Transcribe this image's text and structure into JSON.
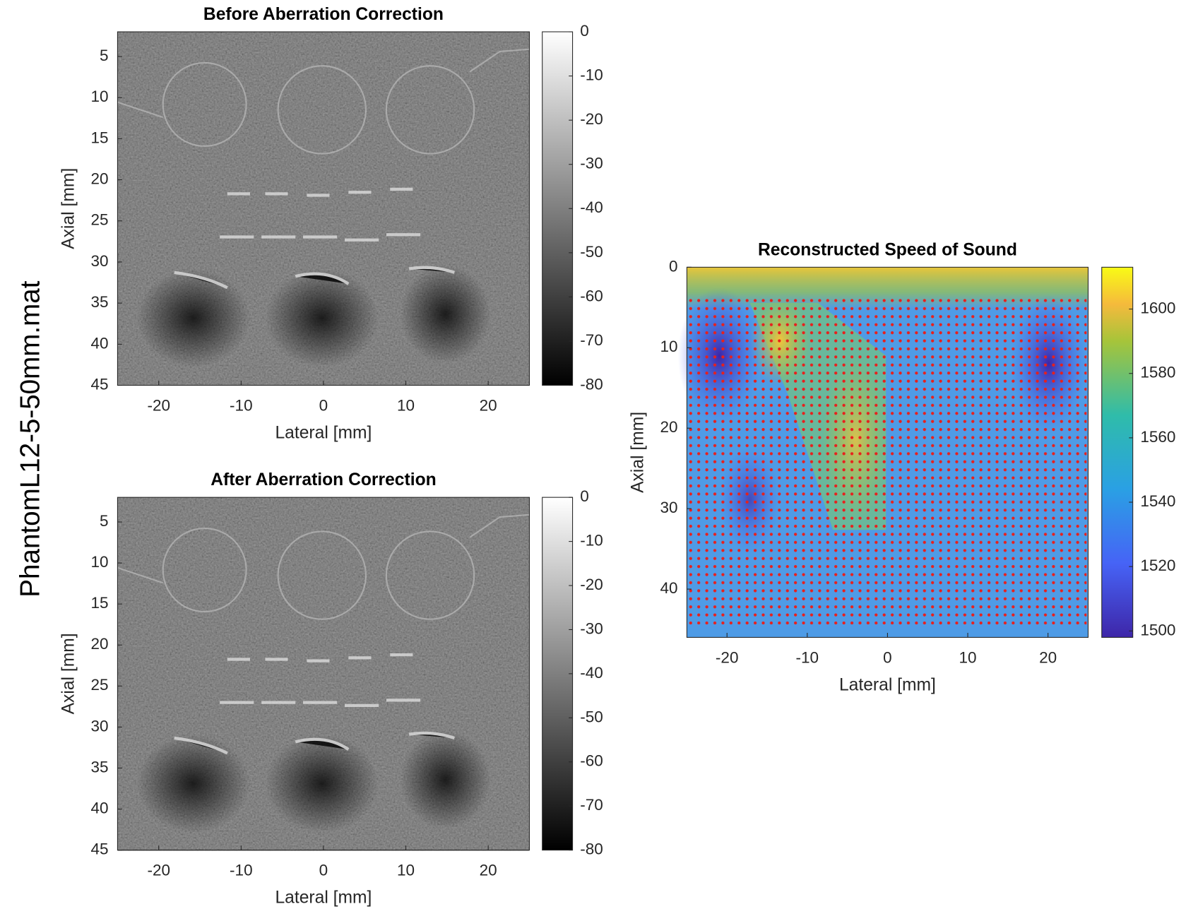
{
  "figure_title": "PhantomL12-5-50mm.mat",
  "chart_data": [
    {
      "type": "image",
      "title": "Before Aberration Correction",
      "xlabel": "Lateral [mm]",
      "ylabel": "Axial [mm]",
      "xlim": [
        -25,
        25
      ],
      "ylim": [
        2,
        45
      ],
      "y_direction": "reverse",
      "xticks": [
        -20,
        -10,
        0,
        10,
        20
      ],
      "yticks": [
        5,
        10,
        15,
        20,
        25,
        30,
        35,
        40,
        45
      ],
      "colormap": "gray",
      "clim": [
        -80,
        0
      ],
      "cticks": [
        0,
        -10,
        -20,
        -30,
        -40,
        -50,
        -60,
        -70,
        -80
      ]
    },
    {
      "type": "image",
      "title": "After Aberration Correction",
      "xlabel": "Lateral [mm]",
      "ylabel": "Axial [mm]",
      "xlim": [
        -25,
        25
      ],
      "ylim": [
        2,
        45
      ],
      "y_direction": "reverse",
      "xticks": [
        -20,
        -10,
        0,
        10,
        20
      ],
      "yticks": [
        5,
        10,
        15,
        20,
        25,
        30,
        35,
        40,
        45
      ],
      "colormap": "gray",
      "clim": [
        -80,
        0
      ],
      "cticks": [
        0,
        -10,
        -20,
        -30,
        -40,
        -50,
        -60,
        -70,
        -80
      ]
    },
    {
      "type": "image",
      "title": "Reconstructed Speed of Sound",
      "xlabel": "Lateral [mm]",
      "ylabel": "Axial [mm]",
      "xlim": [
        -25,
        25
      ],
      "ylim": [
        0,
        46
      ],
      "y_direction": "reverse",
      "xticks": [
        -20,
        -10,
        0,
        10,
        20
      ],
      "yticks": [
        0,
        10,
        20,
        30,
        40
      ],
      "colormap": "parula",
      "clim": [
        1498,
        1613
      ],
      "cticks": [
        1500,
        1520,
        1540,
        1560,
        1580,
        1600
      ]
    }
  ]
}
